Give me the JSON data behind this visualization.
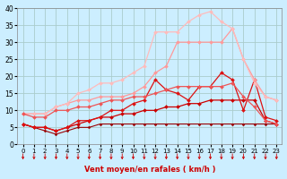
{
  "xlabel": "Vent moyen/en rafales ( km/h )",
  "background_color": "#cceeff",
  "grid_color": "#aacccc",
  "x_ticks": [
    0,
    1,
    2,
    3,
    4,
    5,
    6,
    7,
    8,
    9,
    10,
    11,
    12,
    13,
    14,
    15,
    16,
    17,
    18,
    19,
    20,
    21,
    22,
    23
  ],
  "y_ticks": [
    0,
    5,
    10,
    15,
    20,
    25,
    30,
    35,
    40
  ],
  "xlim": [
    -0.5,
    23.5
  ],
  "ylim": [
    0,
    40
  ],
  "series": [
    {
      "x": [
        0,
        1,
        2,
        3,
        4,
        5,
        6,
        7,
        8,
        9,
        10,
        11,
        12,
        13,
        14,
        15,
        16,
        17,
        18,
        19,
        20,
        21,
        22,
        23
      ],
      "y": [
        6,
        5,
        4,
        3,
        4,
        5,
        5,
        6,
        6,
        6,
        6,
        6,
        6,
        6,
        6,
        6,
        6,
        6,
        6,
        6,
        6,
        6,
        6,
        6
      ],
      "color": "#990000",
      "marker": "D",
      "markersize": 1.5,
      "linewidth": 0.8
    },
    {
      "x": [
        0,
        1,
        2,
        3,
        4,
        5,
        6,
        7,
        8,
        9,
        10,
        11,
        12,
        13,
        14,
        15,
        16,
        17,
        18,
        19,
        20,
        21,
        22,
        23
      ],
      "y": [
        6,
        5,
        5,
        4,
        5,
        6,
        7,
        8,
        8,
        9,
        9,
        10,
        10,
        11,
        11,
        12,
        12,
        13,
        13,
        13,
        13,
        13,
        7,
        6
      ],
      "color": "#cc0000",
      "marker": "D",
      "markersize": 2.0,
      "linewidth": 0.9
    },
    {
      "x": [
        0,
        1,
        2,
        3,
        4,
        5,
        6,
        7,
        8,
        9,
        10,
        11,
        12,
        13,
        14,
        15,
        16,
        17,
        18,
        19,
        20,
        21,
        22,
        23
      ],
      "y": [
        6,
        5,
        5,
        4,
        5,
        7,
        7,
        8,
        10,
        10,
        12,
        13,
        19,
        16,
        15,
        13,
        17,
        17,
        21,
        19,
        10,
        19,
        8,
        7
      ],
      "color": "#dd1111",
      "marker": "D",
      "markersize": 2.0,
      "linewidth": 0.9
    },
    {
      "x": [
        0,
        1,
        2,
        3,
        4,
        5,
        6,
        7,
        8,
        9,
        10,
        11,
        12,
        13,
        14,
        15,
        16,
        17,
        18,
        19,
        20,
        21,
        22,
        23
      ],
      "y": [
        9,
        9,
        9,
        11,
        12,
        13,
        13,
        14,
        14,
        14,
        15,
        17,
        21,
        23,
        30,
        30,
        30,
        30,
        30,
        34,
        25,
        19,
        14,
        13
      ],
      "color": "#ff9999",
      "marker": "D",
      "markersize": 2.0,
      "linewidth": 0.9
    },
    {
      "x": [
        0,
        1,
        2,
        3,
        4,
        5,
        6,
        7,
        8,
        9,
        10,
        11,
        12,
        13,
        14,
        15,
        16,
        17,
        18,
        19,
        20,
        21,
        22,
        23
      ],
      "y": [
        9,
        9,
        9,
        11,
        12,
        15,
        16,
        18,
        18,
        19,
        21,
        23,
        33,
        33,
        33,
        36,
        38,
        39,
        36,
        34,
        25,
        18,
        14,
        13
      ],
      "color": "#ffbbbb",
      "marker": "D",
      "markersize": 2.0,
      "linewidth": 0.9
    },
    {
      "x": [
        0,
        1,
        2,
        3,
        4,
        5,
        6,
        7,
        8,
        9,
        10,
        11,
        12,
        13,
        14,
        15,
        16,
        17,
        18,
        19,
        20,
        21,
        22,
        23
      ],
      "y": [
        9,
        8,
        8,
        10,
        10,
        11,
        11,
        12,
        13,
        13,
        14,
        14,
        15,
        16,
        17,
        17,
        17,
        17,
        17,
        18,
        14,
        11,
        7,
        6
      ],
      "color": "#ee5555",
      "marker": "D",
      "markersize": 2.0,
      "linewidth": 0.9
    }
  ],
  "arrow_color": "#cc0000",
  "arrow_size": 4
}
